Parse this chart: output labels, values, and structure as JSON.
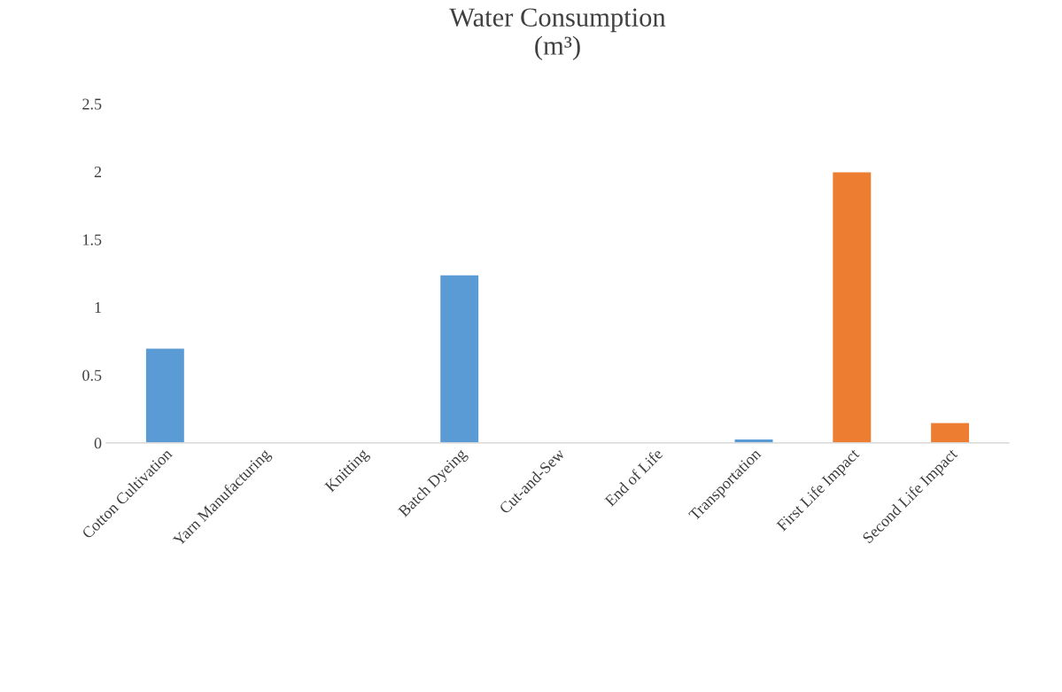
{
  "chart_data": {
    "type": "bar",
    "title": "Water Consumption\n(m³)",
    "categories": [
      "Cotton Cultivation",
      "Yarn Manufacturing",
      "Knitting",
      "Batch Dyeing",
      "Cut-and-Sew",
      "End of Life",
      "Transportation",
      "First Life Impact",
      "Second Life Impact"
    ],
    "values": [
      0.7,
      null,
      null,
      1.24,
      null,
      null,
      0.03,
      2.0,
      0.15
    ],
    "colors": [
      "#5b9bd5",
      null,
      null,
      "#5b9bd5",
      null,
      null,
      "#5b9bd5",
      "#ed7d31",
      "#ed7d31"
    ],
    "ylim": [
      0,
      2.5
    ],
    "yticks": [
      0,
      0.5,
      1,
      1.5,
      2,
      2.5
    ],
    "grid": false
  }
}
